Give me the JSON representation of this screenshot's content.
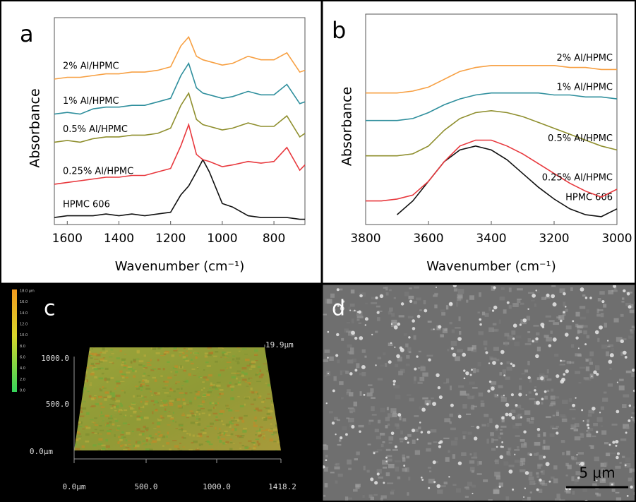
{
  "chart_data": [
    {
      "type": "line",
      "panel_label": "a",
      "x_label": "Wavenumber (cm⁻¹)",
      "y_label": "Absorbance",
      "x": [
        1650,
        1600,
        1550,
        1500,
        1450,
        1400,
        1350,
        1300,
        1250,
        1200,
        1160,
        1130,
        1100,
        1075,
        1050,
        1000,
        960,
        900,
        850,
        800,
        750,
        700,
        680
      ],
      "xlim": [
        1650,
        680
      ],
      "ylim": [
        0,
        110
      ],
      "xticks": [
        1600,
        1400,
        1200,
        1000,
        800
      ],
      "series": [
        {
          "name": "HPMC 606",
          "color": "#111111",
          "values": [
            4,
            5,
            5,
            5,
            6,
            5,
            6,
            5,
            6,
            7,
            17,
            22,
            30,
            37,
            30,
            12,
            10,
            5,
            4,
            4,
            4,
            3,
            3
          ]
        },
        {
          "name": "0.25% Al/HPMC",
          "color": "#e8383d",
          "values": [
            23,
            24,
            25,
            26,
            27,
            27,
            28,
            28,
            30,
            32,
            45,
            57,
            40,
            37,
            36,
            33,
            34,
            36,
            35,
            36,
            44,
            31,
            34
          ]
        },
        {
          "name": "0.5% Al/HPMC",
          "color": "#8f8f2e",
          "values": [
            47,
            48,
            47,
            49,
            50,
            50,
            51,
            51,
            52,
            55,
            68,
            75,
            60,
            57,
            56,
            54,
            55,
            58,
            56,
            56,
            62,
            50,
            52
          ]
        },
        {
          "name": "1% Al/HPMC",
          "color": "#2f8f9d",
          "values": [
            63,
            64,
            63,
            66,
            67,
            67,
            68,
            68,
            70,
            72,
            85,
            92,
            78,
            75,
            74,
            72,
            73,
            76,
            74,
            74,
            80,
            69,
            70
          ]
        },
        {
          "name": "2% Al/HPMC",
          "color": "#f7a043",
          "values": [
            83,
            84,
            84,
            85,
            86,
            86,
            87,
            87,
            88,
            90,
            102,
            107,
            96,
            94,
            93,
            91,
            92,
            96,
            94,
            94,
            98,
            87,
            88
          ]
        }
      ]
    },
    {
      "type": "line",
      "panel_label": "b",
      "x_label": "Wavenumber (cm⁻¹)",
      "y_label": "Absorbance",
      "x": [
        3800,
        3750,
        3700,
        3650,
        3600,
        3550,
        3500,
        3450,
        3400,
        3350,
        3300,
        3250,
        3200,
        3150,
        3100,
        3050,
        3000
      ],
      "xlim": [
        3800,
        3000
      ],
      "ylim": [
        0,
        100
      ],
      "xticks": [
        3800,
        3600,
        3400,
        3200,
        3000
      ],
      "series": [
        {
          "name": "HPMC 606",
          "color": "#111111",
          "values": [
            null,
            null,
            5,
            12,
            22,
            32,
            38,
            40,
            38,
            33,
            26,
            19,
            13,
            8,
            5,
            4,
            8
          ]
        },
        {
          "name": "0.25% Al/HPMC",
          "color": "#e8383d",
          "values": [
            12,
            12,
            13,
            15,
            22,
            32,
            40,
            43,
            43,
            40,
            36,
            31,
            26,
            21,
            17,
            14,
            18
          ]
        },
        {
          "name": "0.5% Al/HPMC",
          "color": "#8f8f2e",
          "values": [
            35,
            35,
            35,
            36,
            40,
            48,
            54,
            57,
            58,
            57,
            55,
            52,
            49,
            46,
            43,
            40,
            38
          ]
        },
        {
          "name": "1% Al/HPMC",
          "color": "#2f8f9d",
          "values": [
            53,
            53,
            53,
            54,
            57,
            61,
            64,
            66,
            67,
            67,
            67,
            67,
            66,
            66,
            65,
            65,
            64
          ]
        },
        {
          "name": "2% Al/HPMC",
          "color": "#f7a043",
          "values": [
            67,
            67,
            67,
            68,
            70,
            74,
            78,
            80,
            81,
            81,
            81,
            81,
            81,
            80,
            80,
            79,
            79
          ]
        }
      ]
    }
  ],
  "images": [
    {
      "panel_label": "c",
      "colorbar_ticks": [
        "18.0 µm",
        "16.0",
        "14.0",
        "12.0",
        "10.0",
        "8.0",
        "6.0",
        "4.0",
        "2.0",
        "0.0"
      ],
      "y_labels": [
        "1000.0",
        "500.0",
        "0.0µm"
      ],
      "z_label": "19.9µm",
      "x_labels": [
        "0.0µm",
        "500.0",
        "1000.0",
        "1418.2"
      ]
    },
    {
      "panel_label": "d",
      "scale_bar": "5 µm"
    }
  ]
}
